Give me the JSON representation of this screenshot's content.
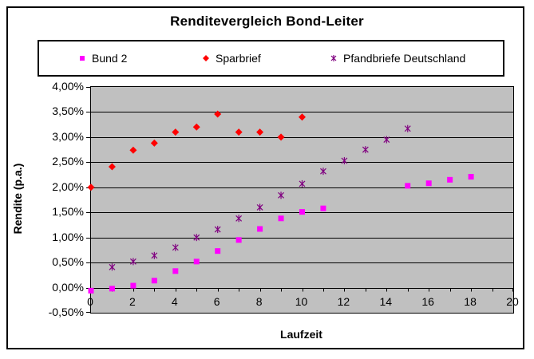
{
  "title": "Renditevergleich Bond-Leiter",
  "colors": {
    "plot_background": "#c0c0c0",
    "chart_background": "#ffffff",
    "axis_and_grid": "#000000",
    "series_bund2": "#ff00ff",
    "series_sparbrief": "#ff0000",
    "series_pfandbriefe": "#800080"
  },
  "chart_data": {
    "type": "scatter",
    "title": "Renditevergleich Bond-Leiter",
    "xlabel": "Laufzeit",
    "ylabel": "Rendite (p.a.)",
    "xlim": [
      0,
      20
    ],
    "ylim": [
      -0.5,
      4.0
    ],
    "grid": true,
    "legend_position": "top",
    "x_ticks": {
      "minor_interval": 1,
      "labels": [
        {
          "value": 0,
          "label": "0"
        },
        {
          "value": 2,
          "label": "2"
        },
        {
          "value": 4,
          "label": "4"
        },
        {
          "value": 6,
          "label": "6"
        },
        {
          "value": 8,
          "label": "8"
        },
        {
          "value": 10,
          "label": "10"
        },
        {
          "value": 12,
          "label": "12"
        },
        {
          "value": 14,
          "label": "14"
        },
        {
          "value": 16,
          "label": "16"
        },
        {
          "value": 18,
          "label": "18"
        },
        {
          "value": 20,
          "label": "20"
        }
      ]
    },
    "y_ticks": [
      {
        "value": 4.0,
        "label": "4,00%"
      },
      {
        "value": 3.5,
        "label": "3,50%"
      },
      {
        "value": 3.0,
        "label": "3,00%"
      },
      {
        "value": 2.5,
        "label": "2,50%"
      },
      {
        "value": 2.0,
        "label": "2,00%"
      },
      {
        "value": 1.5,
        "label": "1,50%"
      },
      {
        "value": 1.0,
        "label": "1,00%"
      },
      {
        "value": 0.5,
        "label": "0,50%"
      },
      {
        "value": 0.0,
        "label": "0,00%"
      },
      {
        "value": -0.5,
        "label": "-0,50%"
      }
    ],
    "series": [
      {
        "name": "Bund 2",
        "marker": "square",
        "color": "#ff00ff",
        "points": [
          [
            0,
            -0.06
          ],
          [
            1,
            -0.02
          ],
          [
            2,
            0.04
          ],
          [
            3,
            0.14
          ],
          [
            4,
            0.33
          ],
          [
            5,
            0.52
          ],
          [
            6,
            0.73
          ],
          [
            7,
            0.95
          ],
          [
            8,
            1.17
          ],
          [
            9,
            1.38
          ],
          [
            10,
            1.51
          ],
          [
            11,
            1.58
          ],
          [
            15,
            2.03
          ],
          [
            16,
            2.08
          ],
          [
            17,
            2.15
          ],
          [
            18,
            2.21
          ]
        ]
      },
      {
        "name": "Sparbrief",
        "marker": "diamond",
        "color": "#ff0000",
        "points": [
          [
            0,
            2.0
          ],
          [
            1,
            2.41
          ],
          [
            2,
            2.74
          ],
          [
            3,
            2.88
          ],
          [
            4,
            3.1
          ],
          [
            5,
            3.2
          ],
          [
            6,
            3.46
          ],
          [
            7,
            3.1
          ],
          [
            8,
            3.1
          ],
          [
            9,
            3.0
          ],
          [
            10,
            3.4
          ]
        ]
      },
      {
        "name": "Pfandbriefe Deutschland",
        "marker": "star",
        "color": "#800080",
        "points": [
          [
            1,
            0.41
          ],
          [
            2,
            0.52
          ],
          [
            3,
            0.64
          ],
          [
            4,
            0.8
          ],
          [
            5,
            1.0
          ],
          [
            6,
            1.16
          ],
          [
            7,
            1.38
          ],
          [
            8,
            1.6
          ],
          [
            9,
            1.84
          ],
          [
            10,
            2.07
          ],
          [
            11,
            2.32
          ],
          [
            12,
            2.53
          ],
          [
            13,
            2.75
          ],
          [
            14,
            2.95
          ],
          [
            15,
            3.17
          ]
        ]
      }
    ]
  }
}
